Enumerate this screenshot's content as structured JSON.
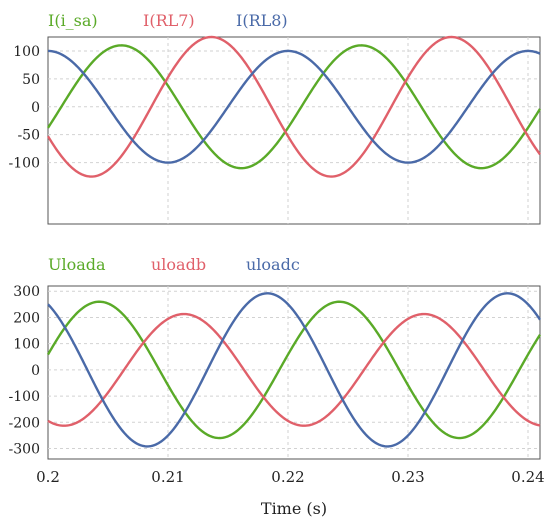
{
  "colors": {
    "green": "#5aaa28",
    "red": "#e0606a",
    "blue": "#4a6aa8",
    "grid": "#d2d2d2",
    "frame": "#555555"
  },
  "x_axis": {
    "ticks": [
      0.2,
      0.21,
      0.22,
      0.23,
      0.24
    ],
    "tick_labels": [
      "0.2",
      "0.21",
      "0.22",
      "0.23",
      "0.24"
    ],
    "xlim": [
      0.2,
      0.241
    ],
    "xlabel": "Time (s)"
  },
  "chart_data": [
    {
      "type": "line",
      "grid": true,
      "legend_position": "top",
      "yticks": [
        100,
        50,
        0,
        -50,
        -100
      ],
      "ytick_labels": [
        "100",
        "50",
        "0",
        "-50",
        "-100"
      ],
      "ylim": [
        -210,
        125
      ],
      "series": [
        {
          "name": "I(i_sa)",
          "color": "green",
          "amplitude": 110,
          "frequency": 50,
          "phase_deg": -20
        },
        {
          "name": "I(RL7)",
          "color": "red",
          "amplitude": 125,
          "frequency": 50,
          "phase_deg": 205
        },
        {
          "name": "I(RL8)",
          "color": "blue",
          "amplitude": 100,
          "frequency": 50,
          "phase_deg": 90
        }
      ]
    },
    {
      "type": "line",
      "grid": true,
      "legend_position": "top",
      "yticks": [
        300,
        200,
        100,
        0,
        -100,
        -200,
        -300
      ],
      "ytick_labels": [
        "300",
        "200",
        "100",
        "0",
        "-100",
        "-200",
        "-300"
      ],
      "ylim": [
        -340,
        320
      ],
      "series": [
        {
          "name": "Uloada",
          "color": "green",
          "amplitude": 260,
          "frequency": 50,
          "phase_deg": 13
        },
        {
          "name": "uloadb",
          "color": "red",
          "amplitude": 213,
          "frequency": 50,
          "phase_deg": -114
        },
        {
          "name": "uloadc",
          "color": "blue",
          "amplitude": 292,
          "frequency": 50,
          "phase_deg": 121
        }
      ]
    }
  ]
}
